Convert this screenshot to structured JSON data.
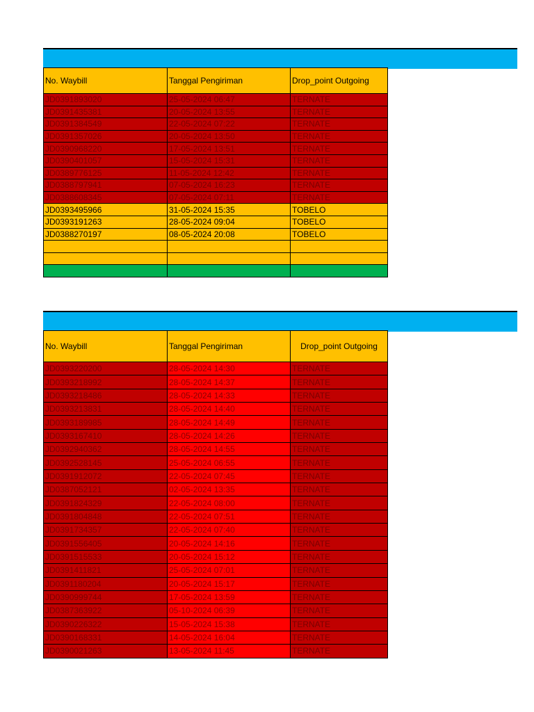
{
  "table1": {
    "headers": [
      "No. Waybill",
      "Tanggal Pengiriman",
      "Drop_point Outgoing"
    ],
    "rows": [
      {
        "waybill": "JD0391893020",
        "date": "25-05-2024 06:47",
        "drop": "TERNATE",
        "status": "red"
      },
      {
        "waybill": "JD0391435381",
        "date": "20-05-2024 13:55",
        "drop": "TERNATE",
        "status": "red"
      },
      {
        "waybill": "JD0391384549",
        "date": "22-05-2024 07:22",
        "drop": "TERNATE",
        "status": "red"
      },
      {
        "waybill": "JD0391357026",
        "date": "20-05-2024 13:50",
        "drop": "TERNATE",
        "status": "red"
      },
      {
        "waybill": "JD0390968220",
        "date": "17-05-2024 13:51",
        "drop": "TERNATE",
        "status": "red"
      },
      {
        "waybill": "JD0390401057",
        "date": "15-05-2024 15:31",
        "drop": "TERNATE",
        "status": "red"
      },
      {
        "waybill": "JD0389776125",
        "date": "11-05-2024 12:42",
        "drop": "TERNATE",
        "status": "red"
      },
      {
        "waybill": "JD0388797941",
        "date": "07-05-2024 16:23",
        "drop": "TERNATE",
        "status": "red"
      },
      {
        "waybill": "JD0388608345",
        "date": "07-05-2024 07:11",
        "drop": "TERNATE",
        "status": "red"
      },
      {
        "waybill": "JD0393495966",
        "date": "31-05-2024 15:35",
        "drop": "TOBELO",
        "status": "yellow"
      },
      {
        "waybill": "JD0393191263",
        "date": "28-05-2024 09:04",
        "drop": "TOBELO",
        "status": "yellow"
      },
      {
        "waybill": "JD0388270197",
        "date": "08-05-2024 20:08",
        "drop": "TOBELO",
        "status": "yellow"
      },
      {
        "waybill": "",
        "date": "",
        "drop": "",
        "status": "yellow"
      },
      {
        "waybill": "",
        "date": "",
        "drop": "",
        "status": "yellow"
      },
      {
        "waybill": "",
        "date": "",
        "drop": "",
        "status": "green"
      }
    ]
  },
  "table2": {
    "headers": [
      "No. Waybill",
      "Tanggal Pengiriman",
      "Drop_point Outgoing"
    ],
    "rows": [
      {
        "waybill": "JD0393220200",
        "date": "28-05-2024 14:30",
        "drop": "TERNATE"
      },
      {
        "waybill": "JD0393218992",
        "date": "28-05-2024 14:37",
        "drop": "TERNATE"
      },
      {
        "waybill": "JD0393218486",
        "date": "28-05-2024 14:33",
        "drop": "TERNATE"
      },
      {
        "waybill": "JD0393213831",
        "date": "28-05-2024 14:40",
        "drop": "TERNATE"
      },
      {
        "waybill": "JD0393189985",
        "date": "28-05-2024 14:49",
        "drop": "TERNATE"
      },
      {
        "waybill": "JD0393167410",
        "date": "28-05-2024 14:26",
        "drop": "TERNATE"
      },
      {
        "waybill": "JD0392940362",
        "date": "28-05-2024 14:55",
        "drop": "TERNATE"
      },
      {
        "waybill": "JD0392528145",
        "date": "25-05-2024 06:55",
        "drop": "TERNATE"
      },
      {
        "waybill": "JD0391912072",
        "date": "22-05-2024 07:45",
        "drop": "TERNATE"
      },
      {
        "waybill": "JD0387052121",
        "date": "02-05-2024 13:35",
        "drop": "TERNATE"
      },
      {
        "waybill": "JD0391824329",
        "date": "22-05-2024 08:00",
        "drop": "TERNATE"
      },
      {
        "waybill": "JD0391804848",
        "date": "22-05-2024 07:51",
        "drop": "TERNATE"
      },
      {
        "waybill": "JD0391734357",
        "date": "22-05-2024 07:40",
        "drop": "TERNATE"
      },
      {
        "waybill": "JD0391556405",
        "date": "20-05-2024 14:16",
        "drop": "TERNATE"
      },
      {
        "waybill": "JD0391515533",
        "date": "20-05-2024 15:12",
        "drop": "TERNATE"
      },
      {
        "waybill": "JD0391411821",
        "date": "25-05-2024 07:01",
        "drop": "TERNATE"
      },
      {
        "waybill": "JD0391180204",
        "date": "20-05-2024 15:17",
        "drop": "TERNATE"
      },
      {
        "waybill": "JD0390999744",
        "date": "17-05-2024 13:59",
        "drop": "TERNATE"
      },
      {
        "waybill": "JD0387363922",
        "date": "05-10-2024 06:39",
        "drop": "TERNATE"
      },
      {
        "waybill": "JD0390226322",
        "date": "15-05-2024 15:38",
        "drop": "TERNATE"
      },
      {
        "waybill": "JD0390168331",
        "date": "14-05-2024 16:04",
        "drop": "TERNATE"
      },
      {
        "waybill": "JD0390021263",
        "date": "13-05-2024 11:45",
        "drop": "TERNATE"
      }
    ]
  }
}
